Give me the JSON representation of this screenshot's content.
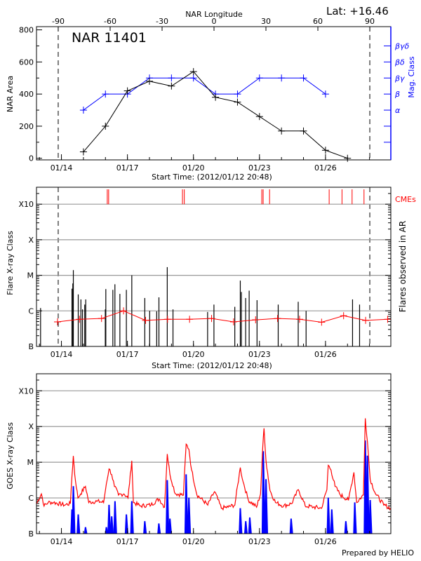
{
  "header": {
    "lat_label": "Lat: +16.46",
    "footer": "Prepared by HELIO"
  },
  "chart_data": [
    {
      "id": "area",
      "type": "line",
      "title": "NAR 11401",
      "xlabel": "Start Time: (2012/01/12 20:48)",
      "ylabel": "NAR Area",
      "y2label": "Mag. Class",
      "top_axis_label": "NAR Longitude",
      "top_ticks": [
        -90,
        -60,
        -30,
        0,
        30,
        60,
        90
      ],
      "limb_longitudes": [
        -90,
        90
      ],
      "xlim": [
        "2012-01-12T20:48",
        "2012-01-28T23:15"
      ],
      "x_ticks": [
        "01/14",
        "01/17",
        "01/20",
        "01/23",
        "01/26"
      ],
      "ylim": [
        -10,
        820
      ],
      "yticks": [
        0,
        200,
        400,
        600,
        800
      ],
      "y2_categories": [
        "α",
        "β",
        "βγ",
        "βδ",
        "βγδ"
      ],
      "series": [
        {
          "name": "NAR Area",
          "color": "#000000",
          "points": [
            [
              "2012-01-15T00:00",
              40
            ],
            [
              "2012-01-16T00:00",
              200
            ],
            [
              "2012-01-17T00:00",
              420
            ],
            [
              "2012-01-18T00:00",
              480
            ],
            [
              "2012-01-19T00:00",
              450
            ],
            [
              "2012-01-20T00:00",
              540
            ],
            [
              "2012-01-21T00:00",
              380
            ],
            [
              "2012-01-22T00:00",
              350
            ],
            [
              "2012-01-23T00:00",
              260
            ],
            [
              "2012-01-24T00:00",
              170
            ],
            [
              "2012-01-25T00:00",
              170
            ],
            [
              "2012-01-26T00:00",
              50
            ],
            [
              "2012-01-27T00:00",
              0
            ]
          ]
        },
        {
          "name": "Mag. Class",
          "color": "#0000ff",
          "points": [
            [
              "2012-01-15T00:00",
              "α"
            ],
            [
              "2012-01-16T00:00",
              "β"
            ],
            [
              "2012-01-17T00:00",
              "β"
            ],
            [
              "2012-01-18T00:00",
              "βγ"
            ],
            [
              "2012-01-19T00:00",
              "βγ"
            ],
            [
              "2012-01-20T00:00",
              "βγ"
            ],
            [
              "2012-01-21T00:00",
              "β"
            ],
            [
              "2012-01-22T00:00",
              "β"
            ],
            [
              "2012-01-23T00:00",
              "βγ"
            ],
            [
              "2012-01-24T00:00",
              "βγ"
            ],
            [
              "2012-01-25T00:00",
              "βγ"
            ],
            [
              "2012-01-26T00:00",
              "β"
            ]
          ]
        }
      ]
    },
    {
      "id": "flares",
      "type": "bar",
      "xlabel": "Start Time: (2012/01/12 20:48)",
      "ylabel": "Flare X-ray Class",
      "y2label": "Flares observed in AR",
      "cme_label": "CMEs",
      "y_scale": "log",
      "grid": true,
      "limb_longitudes": [
        -90,
        90
      ],
      "xlim": [
        "2012-01-12T20:48",
        "2012-01-28T23:15"
      ],
      "x_ticks": [
        "01/14",
        "01/17",
        "01/20",
        "01/23",
        "01/26"
      ],
      "ylim": [
        "B1",
        "X30"
      ],
      "y_tick_labels": [
        "B",
        "C",
        "M",
        "X",
        "X10"
      ],
      "colors": {
        "flares": "#000000",
        "average": "#ff0000",
        "cmes": "#ff0000",
        "grid": "#999999"
      },
      "flares": [
        [
          "2012-01-13T01:15",
          "C1.2"
        ],
        [
          "2012-01-14T11:30",
          "C4.2"
        ],
        [
          "2012-01-14T12:25",
          "C5.9"
        ],
        [
          "2012-01-14T13:00",
          "M1.4"
        ],
        [
          "2012-01-14T18:20",
          "C2.9"
        ],
        [
          "2012-01-14T21:15",
          "C2.1"
        ],
        [
          "2012-01-14T23:00",
          "C1.1"
        ],
        [
          "2012-01-15T01:25",
          "C1.5"
        ],
        [
          "2012-01-15T02:30",
          "C2.1"
        ],
        [
          "2012-01-15T23:50",
          "C1.1"
        ],
        [
          "2012-01-16T00:25",
          "C4.1"
        ],
        [
          "2012-01-16T08:05",
          "C3.9"
        ],
        [
          "2012-01-16T10:20",
          "C5.6"
        ],
        [
          "2012-01-16T15:45",
          "C3.0"
        ],
        [
          "2012-01-16T22:50",
          "C3.9"
        ],
        [
          "2012-01-17T04:45",
          "M1.0"
        ],
        [
          "2012-01-17T18:55",
          "C2.3"
        ],
        [
          "2012-01-18T00:15",
          "C1.0"
        ],
        [
          "2012-01-18T07:55",
          "B9.7"
        ],
        [
          "2012-01-18T10:20",
          "C2.4"
        ],
        [
          "2012-01-18T19:25",
          "M1.7"
        ],
        [
          "2012-01-19T01:40",
          "C1.1"
        ],
        [
          "2012-01-20T15:25",
          "B9.3"
        ],
        [
          "2012-01-20T22:20",
          "C1.5"
        ],
        [
          "2012-01-21T21:05",
          "C1.3"
        ],
        [
          "2012-01-22T03:05",
          "C7.1"
        ],
        [
          "2012-01-22T04:15",
          "C3.4"
        ],
        [
          "2012-01-22T08:55",
          "C2.3"
        ],
        [
          "2012-01-22T12:45",
          "C3.7"
        ],
        [
          "2012-01-22T21:20",
          "C2.0"
        ],
        [
          "2012-01-23T20:25",
          "C1.5"
        ],
        [
          "2012-01-24T18:15",
          "C1.8"
        ],
        [
          "2012-01-25T02:50",
          "C1.0"
        ],
        [
          "2012-01-27T05:30",
          "C2.1"
        ],
        [
          "2012-01-27T13:10",
          "C1.5"
        ]
      ],
      "average": [
        [
          "2012-01-13T19:45",
          "B4.9"
        ],
        [
          "2012-01-14T19:45",
          "B5.8"
        ],
        [
          "2012-01-15T19:45",
          "B6.1"
        ],
        [
          "2012-01-16T19:45",
          "C1.0"
        ],
        [
          "2012-01-17T19:45",
          "B5.4"
        ],
        [
          "2012-01-18T19:45",
          "B5.8"
        ],
        [
          "2012-01-19T19:45",
          "B5.8"
        ],
        [
          "2012-01-20T19:45",
          "B6.1"
        ],
        [
          "2012-01-21T19:45",
          "B4.9"
        ],
        [
          "2012-01-22T19:45",
          "B5.6"
        ],
        [
          "2012-01-23T19:45",
          "B6.1"
        ],
        [
          "2012-01-24T19:45",
          "B5.8"
        ],
        [
          "2012-01-25T19:45",
          "B4.8"
        ],
        [
          "2012-01-26T19:45",
          "B7.3"
        ],
        [
          "2012-01-27T19:45",
          "B5.4"
        ],
        [
          "2012-01-28T19:45",
          "B5.8"
        ]
      ],
      "cmes": [
        "2012-01-16T02:00",
        "2012-01-16T03:30",
        "2012-01-19T12:00",
        "2012-01-19T14:00",
        "2012-01-23T02:30",
        "2012-01-23T04:00",
        "2012-01-23T11:00",
        "2012-01-26T04:00",
        "2012-01-26T18:00",
        "2012-01-27T05:00",
        "2012-01-27T18:00"
      ]
    },
    {
      "id": "goes",
      "type": "line",
      "ylabel": "GOES X-ray Class",
      "y_scale": "log",
      "grid": true,
      "xlim": [
        "2012-01-12T20:48",
        "2012-01-28T23:15"
      ],
      "x_ticks": [
        "01/14",
        "01/17",
        "01/20",
        "01/23",
        "01/26"
      ],
      "ylim": [
        "B1",
        "X30"
      ],
      "y_tick_labels": [
        "B",
        "C",
        "M",
        "X",
        "X10"
      ],
      "colors": {
        "long": "#ff0000",
        "short": "#0000ff",
        "grid": "#999999"
      },
      "long_channel": [
        [
          "2012-01-12T21:00",
          "B6.9"
        ],
        [
          "2012-01-13T02:10",
          "C1.3"
        ],
        [
          "2012-01-13T05:05",
          "B5.9"
        ],
        [
          "2012-01-13T09:30",
          "B7.4"
        ],
        [
          "2012-01-13T15:25",
          "B7.4"
        ],
        [
          "2012-01-14T03:15",
          "B6.3"
        ],
        [
          "2012-01-14T09:45",
          "B6.9"
        ],
        [
          "2012-01-14T11:30",
          "C4.2"
        ],
        [
          "2012-01-14T13:00",
          "M1.5"
        ],
        [
          "2012-01-14T14:30",
          "C4.5"
        ],
        [
          "2012-01-14T18:00",
          "C1.0"
        ],
        [
          "2012-01-14T21:00",
          "C1.3"
        ],
        [
          "2012-01-15T02:15",
          "C2.1"
        ],
        [
          "2012-01-15T05:50",
          "B7.4"
        ],
        [
          "2012-01-15T14:40",
          "B8.0"
        ],
        [
          "2012-01-15T22:00",
          "B7.4"
        ],
        [
          "2012-01-16T01:00",
          "C2.5"
        ],
        [
          "2012-01-16T03:55",
          "C6.5"
        ],
        [
          "2012-01-16T06:50",
          "C4.5"
        ],
        [
          "2012-01-16T09:50",
          "C2.1"
        ],
        [
          "2012-01-16T14:15",
          "C1.2"
        ],
        [
          "2012-01-16T20:10",
          "C1.3"
        ],
        [
          "2012-01-17T00:35",
          "C1.0"
        ],
        [
          "2012-01-17T04:45",
          "M1.1"
        ],
        [
          "2012-01-17T06:30",
          "B7.4"
        ],
        [
          "2012-01-17T13:55",
          "B5.9"
        ],
        [
          "2012-01-18T01:40",
          "B6.3"
        ],
        [
          "2012-01-18T10:30",
          "B9.3"
        ],
        [
          "2012-01-18T16:25",
          "B5.5"
        ],
        [
          "2012-01-18T19:25",
          "M1.7"
        ],
        [
          "2012-01-18T22:20",
          "C4.5"
        ],
        [
          "2012-01-19T04:15",
          "C1.3"
        ],
        [
          "2012-01-19T13:05",
          "C1.2"
        ],
        [
          "2012-01-19T16:00",
          "M3.2"
        ],
        [
          "2012-01-19T19:00",
          "M2.3"
        ],
        [
          "2012-01-19T21:55",
          "C6.1"
        ],
        [
          "2012-01-20T03:50",
          "C1.2"
        ],
        [
          "2012-01-20T15:35",
          "B6.3"
        ],
        [
          "2012-01-20T23:00",
          "C1.5"
        ],
        [
          "2012-01-21T06:25",
          "B5.1"
        ],
        [
          "2012-01-21T13:50",
          "B5.5"
        ],
        [
          "2012-01-21T21:10",
          "B6.3"
        ],
        [
          "2012-01-22T03:05",
          "C7.1"
        ],
        [
          "2012-01-22T06:00",
          "C2.9"
        ],
        [
          "2012-01-22T11:55",
          "B8.6"
        ],
        [
          "2012-01-22T20:50",
          "B5.5"
        ],
        [
          "2012-01-23T01:10",
          "C1.3"
        ],
        [
          "2012-01-23T04:10",
          "M5.0"
        ],
        [
          "2012-01-23T05:00",
          "M8.9"
        ],
        [
          "2012-01-23T07:05",
          "M1.1"
        ],
        [
          "2012-01-23T11:30",
          "C1.6"
        ],
        [
          "2012-01-23T17:25",
          "B7.4"
        ],
        [
          "2012-01-24T02:15",
          "B5.9"
        ],
        [
          "2012-01-24T11:05",
          "B6.9"
        ],
        [
          "2012-01-24T18:30",
          "C1.7"
        ],
        [
          "2012-01-25T01:55",
          "B5.9"
        ],
        [
          "2012-01-25T10:45",
          "B5.5"
        ],
        [
          "2012-01-25T19:35",
          "B5.1"
        ],
        [
          "2012-01-26T01:30",
          "C1.7"
        ],
        [
          "2012-01-26T03:00",
          "C8.2"
        ],
        [
          "2012-01-26T06:00",
          "C6.1"
        ],
        [
          "2012-01-26T10:25",
          "C2.1"
        ],
        [
          "2012-01-26T16:15",
          "C1.2"
        ],
        [
          "2012-01-27T01:05",
          "B8.6"
        ],
        [
          "2012-01-27T07:00",
          "C5.2"
        ],
        [
          "2012-01-27T10:00",
          "B7.4"
        ],
        [
          "2012-01-27T17:20",
          "C1.2"
        ],
        [
          "2012-01-27T19:25",
          "X1.7"
        ],
        [
          "2012-01-27T21:45",
          "M3.7"
        ],
        [
          "2012-01-28T00:45",
          "C3.3"
        ],
        [
          "2012-01-28T06:35",
          "C1.3"
        ],
        [
          "2012-01-28T15:30",
          "B6.3"
        ],
        [
          "2012-01-28T23:00",
          "B5.1"
        ]
      ],
      "short_channel_peaks": [
        [
          "2012-01-13T05:05",
          "A2.2"
        ],
        [
          "2012-01-14T11:30",
          "B4.7"
        ],
        [
          "2012-01-14T13:00",
          "C2.1"
        ],
        [
          "2012-01-14T18:20",
          "B3.4"
        ],
        [
          "2012-01-15T02:15",
          "B1.5"
        ],
        [
          "2012-01-16T01:00",
          "B1.5"
        ],
        [
          "2012-01-16T03:55",
          "B6.3"
        ],
        [
          "2012-01-16T06:50",
          "B3.0"
        ],
        [
          "2012-01-16T10:25",
          "B8.0"
        ],
        [
          "2012-01-16T22:50",
          "B3.4"
        ],
        [
          "2012-01-17T04:45",
          "B8.0"
        ],
        [
          "2012-01-17T18:55",
          "B2.2"
        ],
        [
          "2012-01-18T10:15",
          "B1.9"
        ],
        [
          "2012-01-18T19:25",
          "C3.1"
        ],
        [
          "2012-01-18T22:20",
          "B2.6"
        ],
        [
          "2012-01-19T16:00",
          "C4.5"
        ],
        [
          "2012-01-19T19:00",
          "C1.0"
        ],
        [
          "2012-01-22T03:05",
          "B5.1"
        ],
        [
          "2012-01-22T09:00",
          "B2.2"
        ],
        [
          "2012-01-22T13:25",
          "B2.8"
        ],
        [
          "2012-01-23T04:10",
          "M2.0"
        ],
        [
          "2012-01-23T07:05",
          "C3.3"
        ],
        [
          "2012-01-24T10:30",
          "B2.6"
        ],
        [
          "2012-01-26T03:00",
          "C1.0"
        ],
        [
          "2012-01-26T06:50",
          "B4.7"
        ],
        [
          "2012-01-26T22:10",
          "B2.2"
        ],
        [
          "2012-01-27T07:55",
          "B7.4"
        ],
        [
          "2012-01-27T19:25",
          "M4.0"
        ],
        [
          "2012-01-27T21:45",
          "M1.5"
        ],
        [
          "2012-01-28T00:45",
          "B8.6"
        ]
      ]
    }
  ]
}
